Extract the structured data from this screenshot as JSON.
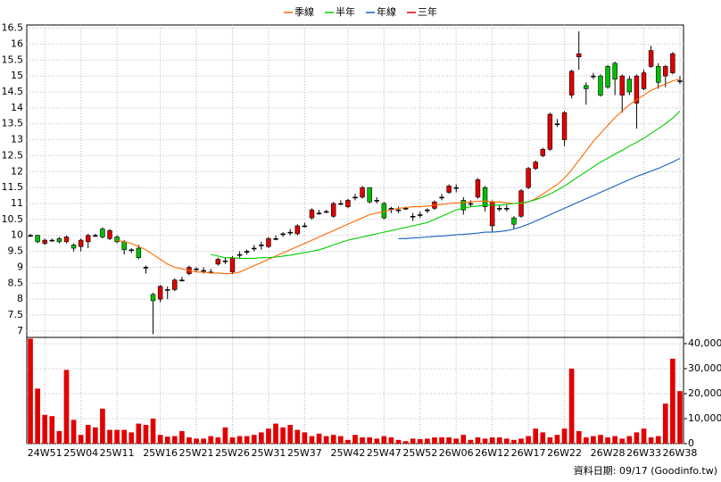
{
  "chart_data": [
    {
      "type": "candlestick",
      "categories": [
        null,
        null,
        "24W51",
        null,
        null,
        null,
        null,
        "25W04",
        null,
        null,
        null,
        null,
        "25W11",
        null,
        null,
        null,
        null,
        null,
        "25W16",
        null,
        null,
        null,
        null,
        "25W21",
        null,
        null,
        null,
        null,
        "25W26",
        null,
        null,
        null,
        null,
        "25W31",
        null,
        null,
        null,
        null,
        "25W37",
        null,
        null,
        null,
        null,
        null,
        "25W42",
        null,
        null,
        null,
        null,
        "25W47",
        null,
        null,
        null,
        null,
        "25W52",
        null,
        null,
        null,
        null,
        "26W06",
        null,
        null,
        null,
        null,
        "26W12",
        null,
        null,
        null,
        null,
        "26W17",
        null,
        null,
        null,
        null,
        "26W22",
        null,
        null,
        null,
        null,
        null,
        "26W28",
        null,
        null,
        null,
        null,
        "26W33",
        null,
        null,
        null,
        null,
        "26W38"
      ],
      "open": [
        10.0,
        10.0,
        9.75,
        9.85,
        9.9,
        9.8,
        9.7,
        9.65,
        9.8,
        10.0,
        10.2,
        9.9,
        9.95,
        9.8,
        9.55,
        9.6,
        9.0,
        8.15,
        8.0,
        8.3,
        8.3,
        8.6,
        8.8,
        8.95,
        8.9,
        8.85,
        9.1,
        9.2,
        8.85,
        9.4,
        9.5,
        9.6,
        9.7,
        9.65,
        9.9,
        10.05,
        10.1,
        10.05,
        10.3,
        10.55,
        10.7,
        10.75,
        10.6,
        11.0,
        10.9,
        11.2,
        11.2,
        11.5,
        11.1,
        11.0,
        10.85,
        10.8,
        10.85,
        10.6,
        10.65,
        10.8,
        10.85,
        11.2,
        11.35,
        11.5,
        11.1,
        11.0,
        11.2,
        11.5,
        10.3,
        10.85,
        10.85,
        10.55,
        10.6,
        11.5,
        12.1,
        12.5,
        12.7,
        13.5,
        13.0,
        14.4,
        15.6,
        14.7,
        15.0,
        15.0,
        15.3,
        15.4,
        14.4,
        14.9,
        14.15,
        14.6,
        15.3,
        15.3,
        15.0,
        15.1,
        14.85
      ],
      "high": [
        10.05,
        10.02,
        9.9,
        9.9,
        9.95,
        10.0,
        9.75,
        9.9,
        10.05,
        10.05,
        10.25,
        10.2,
        10.0,
        9.85,
        9.6,
        9.7,
        9.05,
        8.2,
        8.45,
        8.4,
        8.65,
        8.7,
        9.05,
        9.0,
        9.0,
        8.95,
        9.3,
        9.3,
        9.35,
        9.5,
        9.55,
        9.7,
        9.8,
        9.95,
        10.0,
        10.1,
        10.2,
        10.35,
        10.4,
        10.85,
        10.8,
        10.8,
        11.05,
        11.1,
        11.15,
        11.3,
        11.55,
        11.5,
        11.2,
        11.05,
        10.9,
        10.9,
        10.9,
        10.7,
        10.75,
        10.85,
        11.1,
        11.3,
        11.6,
        11.6,
        11.2,
        11.1,
        11.8,
        11.55,
        11.1,
        10.95,
        10.95,
        10.6,
        11.45,
        12.15,
        12.35,
        12.75,
        13.85,
        13.65,
        13.9,
        15.2,
        16.4,
        14.8,
        15.1,
        15.05,
        15.35,
        15.45,
        15.05,
        15.0,
        15.05,
        15.2,
        15.95,
        15.4,
        15.35,
        15.75,
        15.0
      ],
      "low": [
        9.95,
        9.75,
        9.7,
        9.8,
        9.75,
        9.75,
        9.5,
        9.5,
        9.6,
        9.95,
        9.9,
        9.85,
        9.75,
        9.4,
        9.45,
        9.25,
        8.8,
        6.9,
        7.9,
        8.0,
        8.25,
        8.55,
        8.75,
        8.85,
        8.8,
        8.8,
        9.05,
        9.1,
        8.8,
        9.3,
        9.4,
        9.5,
        9.55,
        9.6,
        9.85,
        9.95,
        10.0,
        10.0,
        10.25,
        10.5,
        10.65,
        10.7,
        10.55,
        10.95,
        10.85,
        11.1,
        11.15,
        11.0,
        11.0,
        10.5,
        10.7,
        10.7,
        10.8,
        10.45,
        10.55,
        10.7,
        10.8,
        11.1,
        11.3,
        11.35,
        10.65,
        10.9,
        11.15,
        10.75,
        10.1,
        10.75,
        10.75,
        10.2,
        10.55,
        11.45,
        12.05,
        12.45,
        12.65,
        13.4,
        12.8,
        14.3,
        15.2,
        14.1,
        14.9,
        14.35,
        14.6,
        14.4,
        13.85,
        14.4,
        13.35,
        14.55,
        15.25,
        14.6,
        14.65,
        15.05,
        14.75
      ],
      "close": [
        10.0,
        9.8,
        9.85,
        9.85,
        9.8,
        9.95,
        9.6,
        9.85,
        10.0,
        10.0,
        9.95,
        10.15,
        9.8,
        9.55,
        9.55,
        9.3,
        9.0,
        7.95,
        8.4,
        8.3,
        8.6,
        8.6,
        9.0,
        8.95,
        8.9,
        8.85,
        9.25,
        9.2,
        9.3,
        9.4,
        9.5,
        9.6,
        9.7,
        9.9,
        9.9,
        10.05,
        10.1,
        10.3,
        10.3,
        10.8,
        10.7,
        10.75,
        11.0,
        11.0,
        11.1,
        11.2,
        11.5,
        11.05,
        11.1,
        10.55,
        10.85,
        10.8,
        10.85,
        10.6,
        10.65,
        10.8,
        11.05,
        11.2,
        11.55,
        11.5,
        10.8,
        11.0,
        11.75,
        10.9,
        11.05,
        10.85,
        10.85,
        10.35,
        11.4,
        12.1,
        12.3,
        12.7,
        13.8,
        13.5,
        13.85,
        15.15,
        15.7,
        14.6,
        15.0,
        14.4,
        14.65,
        14.9,
        15.0,
        14.5,
        15.0,
        15.1,
        15.8,
        14.8,
        15.3,
        15.7,
        14.85
      ],
      "up_color": "#e00000",
      "down_color": "#00c000",
      "flat_color": "#000000",
      "series": [
        {
          "name": "季線",
          "color": "#ff6600",
          "values": [
            null,
            null,
            null,
            null,
            null,
            null,
            null,
            null,
            null,
            null,
            null,
            null,
            9.85,
            9.8,
            9.75,
            9.65,
            9.55,
            9.4,
            9.25,
            9.1,
            9.0,
            8.95,
            8.9,
            8.85,
            8.85,
            8.82,
            8.82,
            8.8,
            8.8,
            8.85,
            8.95,
            9.05,
            9.15,
            9.25,
            9.35,
            9.45,
            9.55,
            9.65,
            9.75,
            9.85,
            9.95,
            10.05,
            10.15,
            10.25,
            10.35,
            10.45,
            10.55,
            10.65,
            10.7,
            10.75,
            10.8,
            10.85,
            10.87,
            10.9,
            10.9,
            10.92,
            10.95,
            10.97,
            11.0,
            11.02,
            11.03,
            11.05,
            11.07,
            11.08,
            11.05,
            11.05,
            11.02,
            11.0,
            11.0,
            11.05,
            11.15,
            11.3,
            11.45,
            11.6,
            11.8,
            12.05,
            12.35,
            12.65,
            12.95,
            13.2,
            13.45,
            13.7,
            13.9,
            14.1,
            14.25,
            14.4,
            14.55,
            14.65,
            14.75,
            14.85,
            14.9
          ]
        },
        {
          "name": "半年",
          "color": "#00cc00",
          "values": [
            null,
            null,
            null,
            null,
            null,
            null,
            null,
            null,
            null,
            null,
            null,
            null,
            null,
            null,
            null,
            null,
            null,
            null,
            null,
            null,
            null,
            null,
            null,
            null,
            null,
            9.4,
            9.35,
            9.3,
            9.3,
            9.28,
            9.28,
            9.28,
            9.3,
            9.3,
            9.32,
            9.35,
            9.38,
            9.42,
            9.46,
            9.5,
            9.55,
            9.62,
            9.7,
            9.78,
            9.85,
            9.9,
            9.95,
            10.0,
            10.05,
            10.1,
            10.15,
            10.2,
            10.25,
            10.3,
            10.35,
            10.4,
            10.5,
            10.6,
            10.7,
            10.8,
            10.85,
            10.9,
            10.92,
            10.95,
            10.95,
            10.95,
            10.97,
            11.0,
            11.02,
            11.05,
            11.12,
            11.2,
            11.3,
            11.42,
            11.55,
            11.7,
            11.85,
            12.0,
            12.15,
            12.3,
            12.42,
            12.55,
            12.67,
            12.8,
            12.92,
            13.05,
            13.2,
            13.35,
            13.5,
            13.68,
            13.9
          ]
        },
        {
          "name": "年線",
          "color": "#1560bd",
          "values": [
            null,
            null,
            null,
            null,
            null,
            null,
            null,
            null,
            null,
            null,
            null,
            null,
            null,
            null,
            null,
            null,
            null,
            null,
            null,
            null,
            null,
            null,
            null,
            null,
            null,
            null,
            null,
            null,
            null,
            null,
            null,
            null,
            null,
            null,
            null,
            null,
            null,
            null,
            null,
            null,
            null,
            null,
            null,
            null,
            null,
            null,
            null,
            null,
            null,
            null,
            null,
            9.9,
            9.9,
            9.92,
            9.93,
            9.95,
            9.97,
            9.98,
            10.0,
            10.02,
            10.03,
            10.05,
            10.07,
            10.1,
            10.1,
            10.12,
            10.15,
            10.2,
            10.27,
            10.35,
            10.45,
            10.55,
            10.65,
            10.75,
            10.85,
            10.95,
            11.05,
            11.15,
            11.25,
            11.35,
            11.45,
            11.55,
            11.65,
            11.75,
            11.85,
            11.93,
            12.02,
            12.1,
            12.2,
            12.3,
            12.42
          ]
        },
        {
          "name": "三年",
          "color": "#e00000",
          "values": [
            null,
            null,
            null,
            null,
            null,
            null,
            null,
            null,
            null,
            null,
            null,
            null,
            null,
            null,
            null,
            null,
            null,
            null,
            null,
            null,
            null,
            null,
            null,
            null,
            null,
            null,
            null,
            null,
            null,
            null,
            null,
            null,
            null,
            null,
            null,
            null,
            null,
            null,
            null,
            null,
            null,
            null,
            null,
            null,
            null,
            null,
            null,
            null,
            null,
            null,
            null,
            null,
            null,
            null,
            null,
            null,
            null,
            null,
            null,
            null,
            null,
            null,
            null,
            null,
            null,
            null,
            null,
            null,
            null,
            null,
            null,
            null,
            null,
            null,
            null,
            null,
            null,
            null,
            null,
            null,
            null,
            null,
            null,
            null,
            null,
            null,
            null,
            null,
            null,
            null,
            null
          ]
        }
      ],
      "ylim": [
        6.8,
        16.6
      ],
      "yticks": [
        7,
        7.5,
        8,
        8.5,
        9,
        9.5,
        10,
        10.5,
        11,
        11.5,
        12,
        12.5,
        13,
        13.5,
        14,
        14.5,
        15,
        15.5,
        16,
        16.5
      ],
      "grid": true
    },
    {
      "type": "bar",
      "values": [
        42000,
        22000,
        11500,
        11000,
        5000,
        29500,
        9500,
        3500,
        7500,
        6500,
        14000,
        5500,
        5500,
        5500,
        4500,
        8000,
        7500,
        10000,
        3500,
        2800,
        3000,
        5000,
        2500,
        2000,
        2000,
        3000,
        2500,
        6500,
        2500,
        3000,
        3000,
        3500,
        4500,
        6000,
        8000,
        6500,
        7500,
        5500,
        4500,
        3000,
        4000,
        3000,
        3500,
        3000,
        1500,
        3500,
        2500,
        2500,
        2000,
        3000,
        2500,
        1500,
        1000,
        2000,
        1800,
        2000,
        2500,
        2500,
        2500,
        2000,
        3500,
        1500,
        2500,
        2000,
        2500,
        2500,
        2000,
        1500,
        2000,
        3000,
        6000,
        4500,
        2500,
        3500,
        6000,
        30000,
        5000,
        2500,
        3000,
        3500,
        2500,
        3000,
        2000,
        3000,
        4500,
        6000,
        2500,
        3000,
        16000,
        34000,
        21000
      ],
      "color": "#e00000",
      "ylim": [
        0,
        42500
      ],
      "yticks": [
        0,
        {
          "value": 10000,
          "label": "10,000"
        },
        {
          "value": 20000,
          "label": "20,000"
        },
        {
          "value": 30000,
          "label": "30,000"
        },
        {
          "value": 40000,
          "label": "40,000"
        }
      ],
      "grid": true
    }
  ],
  "footer": "資料日期: 09/17  (Goodinfo.tw)"
}
